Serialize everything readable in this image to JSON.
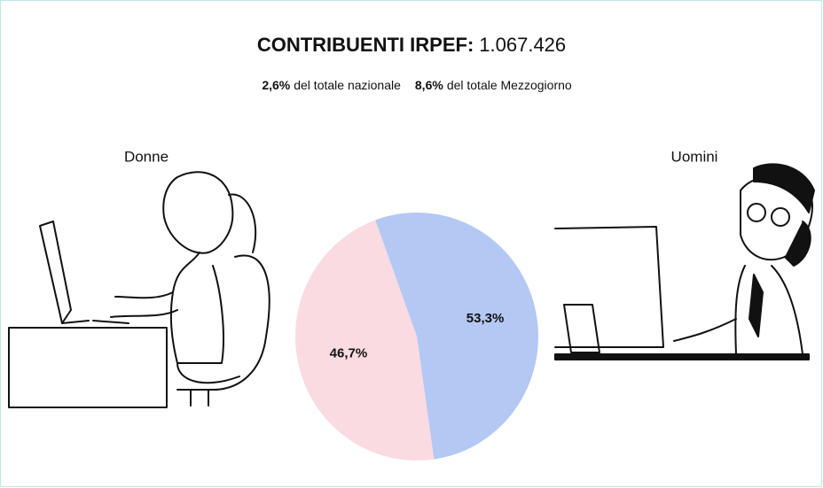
{
  "chart_data": {
    "type": "pie",
    "title": "CONTRIBUENTI IRPEF:",
    "title_value": "1.067.426",
    "stats": [
      {
        "value": "2,6%",
        "text": "del totale nazionale"
      },
      {
        "value": "8,6%",
        "text": "del totale Mezzogiorno"
      }
    ],
    "categories": [
      "Uomini",
      "Donne"
    ],
    "values": [
      53.3,
      46.7
    ],
    "value_labels": [
      "53,3%",
      "46,7%"
    ],
    "colors": [
      "#b4c8f4",
      "#fadbe2"
    ]
  }
}
